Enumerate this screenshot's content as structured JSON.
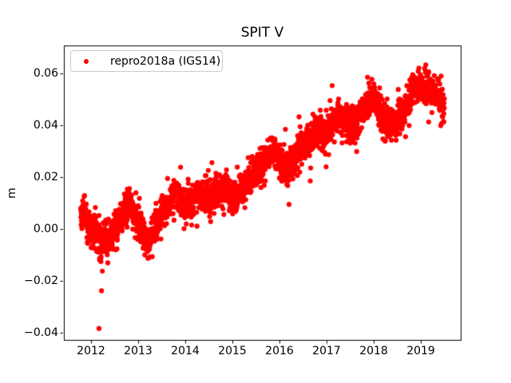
{
  "figure": {
    "background": "#ffffff",
    "axis_color": "#000000",
    "tick_label_color": "#000000"
  },
  "chart_data": {
    "type": "scatter",
    "title": "SPIT V",
    "xlabel": "",
    "ylabel": "m",
    "xlim": [
      2011.424,
      2019.847
    ],
    "ylim": [
      -0.0429,
      0.0707
    ],
    "grid": false,
    "x_ticks": {
      "values": [
        2012,
        2013,
        2014,
        2015,
        2016,
        2017,
        2018,
        2019
      ],
      "labels": [
        "2012",
        "2013",
        "2014",
        "2015",
        "2016",
        "2017",
        "2018",
        "2019"
      ]
    },
    "y_ticks": {
      "values": [
        -0.04,
        -0.02,
        0.0,
        0.02,
        0.04,
        0.06
      ],
      "labels": [
        "−0.04",
        "−0.02",
        "0.00",
        "0.02",
        "0.04",
        "0.06"
      ]
    },
    "legend": {
      "position": "upper left",
      "frame_border_color": "#cccccc",
      "entries": [
        {
          "label": "repro2018a (IGS14)",
          "color": "#ff0000",
          "marker": "dot"
        }
      ]
    },
    "series": [
      {
        "name": "repro2018a (IGS14)",
        "color": "#ff0000",
        "marker": "dot",
        "marker_radius_px": 3.1,
        "x_start": 2011.78,
        "x_end": 2019.5,
        "n_points": 2750,
        "seed": 1234,
        "noise_sigma": 0.0031,
        "stray_fraction": 0.07,
        "stray_sigma": 0.0062,
        "trend_backbone": [
          [
            2011.78,
            0.006
          ],
          [
            2011.9,
            0.004
          ],
          [
            2012.0,
            0.001
          ],
          [
            2012.1,
            -0.002
          ],
          [
            2012.25,
            -0.005
          ],
          [
            2012.4,
            -0.004
          ],
          [
            2012.55,
            0.001
          ],
          [
            2012.7,
            0.007
          ],
          [
            2012.82,
            0.01
          ],
          [
            2012.95,
            0.004
          ],
          [
            2013.1,
            -0.002
          ],
          [
            2013.2,
            -0.005
          ],
          [
            2013.35,
            0.0
          ],
          [
            2013.5,
            0.006
          ],
          [
            2013.65,
            0.01
          ],
          [
            2013.8,
            0.015
          ],
          [
            2013.95,
            0.01
          ],
          [
            2014.1,
            0.009
          ],
          [
            2014.25,
            0.014
          ],
          [
            2014.4,
            0.013
          ],
          [
            2014.55,
            0.012
          ],
          [
            2014.7,
            0.014
          ],
          [
            2014.85,
            0.015
          ],
          [
            2015.0,
            0.012
          ],
          [
            2015.15,
            0.015
          ],
          [
            2015.3,
            0.019
          ],
          [
            2015.45,
            0.021
          ],
          [
            2015.6,
            0.024
          ],
          [
            2015.75,
            0.028
          ],
          [
            2015.88,
            0.03
          ],
          [
            2016.05,
            0.024
          ],
          [
            2016.2,
            0.023
          ],
          [
            2016.35,
            0.028
          ],
          [
            2016.5,
            0.032
          ],
          [
            2016.65,
            0.035
          ],
          [
            2016.8,
            0.038
          ],
          [
            2016.95,
            0.036
          ],
          [
            2017.1,
            0.04
          ],
          [
            2017.25,
            0.043
          ],
          [
            2017.4,
            0.042
          ],
          [
            2017.55,
            0.04
          ],
          [
            2017.7,
            0.043
          ],
          [
            2017.85,
            0.048
          ],
          [
            2018.0,
            0.051
          ],
          [
            2018.15,
            0.044
          ],
          [
            2018.3,
            0.04
          ],
          [
            2018.45,
            0.041
          ],
          [
            2018.6,
            0.044
          ],
          [
            2018.75,
            0.049
          ],
          [
            2018.9,
            0.055
          ],
          [
            2019.0,
            0.056
          ],
          [
            2019.1,
            0.055
          ],
          [
            2019.25,
            0.052
          ],
          [
            2019.38,
            0.05
          ],
          [
            2019.5,
            0.047
          ]
        ],
        "extra_outliers": [
          [
            2012.17,
            -0.0385
          ]
        ]
      }
    ]
  }
}
